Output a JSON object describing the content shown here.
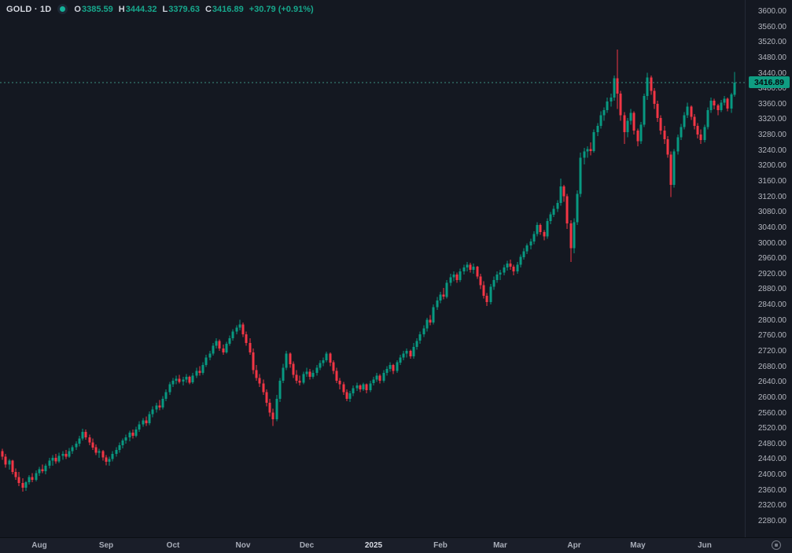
{
  "header": {
    "symbol_text": "GOLD · 1D",
    "marker": "live-dot",
    "o_label": "O",
    "o_value": "3385.59",
    "h_label": "H",
    "h_value": "3444.32",
    "l_label": "L",
    "l_value": "3379.63",
    "c_label": "C",
    "c_value": "3416.89",
    "change_text": "+30.79 (+0.91%)"
  },
  "colors": {
    "background": "#141821",
    "axis_background": "#1a1e29",
    "up": "#089981",
    "down": "#f23645",
    "axis_text": "#b2b5be",
    "price_line": "#3c8f81",
    "price_tag_bg": "#0f9d82",
    "price_tag_text": "#06090f",
    "legend_value": "#17a78c"
  },
  "price_axis": {
    "tick_labels": [
      "3600.00",
      "3560.00",
      "3520.00",
      "3480.00",
      "3440.00",
      "3400.00",
      "3360.00",
      "3320.00",
      "3280.00",
      "3240.00",
      "3200.00",
      "3160.00",
      "3120.00",
      "3080.00",
      "3040.00",
      "3000.00",
      "2960.00",
      "2920.00",
      "2880.00",
      "2840.00",
      "2800.00",
      "2760.00",
      "2720.00",
      "2680.00",
      "2640.00",
      "2600.00",
      "2560.00",
      "2520.00",
      "2480.00",
      "2440.00",
      "2400.00",
      "2360.00",
      "2320.00",
      "2280.00"
    ],
    "last_price_label": "3416.89"
  },
  "time_axis": {
    "ticks": [
      {
        "label": "Aug",
        "index": 11,
        "year": false
      },
      {
        "label": "Sep",
        "index": 31,
        "year": false
      },
      {
        "label": "Oct",
        "index": 51,
        "year": false
      },
      {
        "label": "Nov",
        "index": 72,
        "year": false
      },
      {
        "label": "Dec",
        "index": 91,
        "year": false
      },
      {
        "label": "2025",
        "index": 111,
        "year": true
      },
      {
        "label": "Feb",
        "index": 131,
        "year": false
      },
      {
        "label": "Mar",
        "index": 149,
        "year": false
      },
      {
        "label": "Apr",
        "index": 171,
        "year": false
      },
      {
        "label": "May",
        "index": 190,
        "year": false
      },
      {
        "label": "Jun",
        "index": 210,
        "year": false
      }
    ],
    "settings_icon": "target-icon"
  },
  "chart_data": {
    "type": "candlestick",
    "title": "GOLD · 1D",
    "symbol": "GOLD",
    "interval": "1D",
    "last_price": 3416.89,
    "change": 30.79,
    "change_pct": 0.91,
    "ylim": [
      2280,
      3600
    ],
    "y_step": 40,
    "grid": false,
    "x_range_labels": [
      "Aug",
      "Sep",
      "Oct",
      "Nov",
      "Dec",
      "2025",
      "Feb",
      "Mar",
      "Apr",
      "May",
      "Jun"
    ],
    "candles": [
      [
        2462,
        2468,
        2440,
        2448
      ],
      [
        2448,
        2455,
        2420,
        2428
      ],
      [
        2428,
        2442,
        2415,
        2438
      ],
      [
        2438,
        2440,
        2402,
        2408
      ],
      [
        2408,
        2418,
        2388,
        2395
      ],
      [
        2395,
        2408,
        2372,
        2380
      ],
      [
        2380,
        2392,
        2357,
        2368
      ],
      [
        2368,
        2385,
        2360,
        2382
      ],
      [
        2382,
        2400,
        2376,
        2395
      ],
      [
        2395,
        2405,
        2382,
        2388
      ],
      [
        2388,
        2412,
        2384,
        2405
      ],
      [
        2405,
        2422,
        2398,
        2415
      ],
      [
        2415,
        2428,
        2405,
        2410
      ],
      [
        2410,
        2430,
        2402,
        2425
      ],
      [
        2425,
        2445,
        2418,
        2438
      ],
      [
        2438,
        2452,
        2425,
        2445
      ],
      [
        2445,
        2455,
        2430,
        2436
      ],
      [
        2436,
        2458,
        2432,
        2450
      ],
      [
        2450,
        2462,
        2440,
        2455
      ],
      [
        2455,
        2465,
        2442,
        2448
      ],
      [
        2448,
        2470,
        2445,
        2462
      ],
      [
        2462,
        2478,
        2455,
        2472
      ],
      [
        2472,
        2488,
        2465,
        2482
      ],
      [
        2482,
        2502,
        2475,
        2495
      ],
      [
        2495,
        2520,
        2490,
        2512
      ],
      [
        2512,
        2518,
        2492,
        2498
      ],
      [
        2498,
        2505,
        2478,
        2485
      ],
      [
        2485,
        2495,
        2465,
        2472
      ],
      [
        2472,
        2480,
        2452,
        2458
      ],
      [
        2458,
        2468,
        2445,
        2462
      ],
      [
        2462,
        2465,
        2438,
        2446
      ],
      [
        2446,
        2452,
        2426,
        2435
      ],
      [
        2435,
        2448,
        2425,
        2442
      ],
      [
        2442,
        2462,
        2436,
        2455
      ],
      [
        2455,
        2472,
        2448,
        2465
      ],
      [
        2465,
        2485,
        2458,
        2478
      ],
      [
        2478,
        2495,
        2470,
        2490
      ],
      [
        2490,
        2505,
        2482,
        2498
      ],
      [
        2498,
        2515,
        2488,
        2510
      ],
      [
        2510,
        2518,
        2495,
        2502
      ],
      [
        2502,
        2525,
        2498,
        2518
      ],
      [
        2518,
        2540,
        2512,
        2532
      ],
      [
        2532,
        2548,
        2525,
        2542
      ],
      [
        2542,
        2552,
        2528,
        2535
      ],
      [
        2535,
        2565,
        2530,
        2558
      ],
      [
        2558,
        2578,
        2550,
        2570
      ],
      [
        2570,
        2588,
        2562,
        2580
      ],
      [
        2580,
        2595,
        2568,
        2575
      ],
      [
        2575,
        2605,
        2570,
        2598
      ],
      [
        2598,
        2622,
        2592,
        2615
      ],
      [
        2615,
        2642,
        2608,
        2635
      ],
      [
        2635,
        2652,
        2628,
        2645
      ],
      [
        2645,
        2658,
        2635,
        2650
      ],
      [
        2650,
        2660,
        2638,
        2642
      ],
      [
        2642,
        2655,
        2632,
        2648
      ],
      [
        2648,
        2662,
        2640,
        2655
      ],
      [
        2655,
        2658,
        2635,
        2640
      ],
      [
        2640,
        2665,
        2636,
        2658
      ],
      [
        2658,
        2678,
        2652,
        2670
      ],
      [
        2670,
        2682,
        2658,
        2665
      ],
      [
        2665,
        2692,
        2660,
        2685
      ],
      [
        2685,
        2712,
        2680,
        2705
      ],
      [
        2705,
        2722,
        2698,
        2715
      ],
      [
        2715,
        2742,
        2710,
        2735
      ],
      [
        2735,
        2755,
        2728,
        2748
      ],
      [
        2748,
        2752,
        2722,
        2728
      ],
      [
        2728,
        2738,
        2712,
        2718
      ],
      [
        2718,
        2745,
        2715,
        2740
      ],
      [
        2740,
        2762,
        2735,
        2755
      ],
      [
        2755,
        2778,
        2748,
        2772
      ],
      [
        2772,
        2788,
        2765,
        2782
      ],
      [
        2782,
        2802,
        2775,
        2790
      ],
      [
        2790,
        2795,
        2758,
        2765
      ],
      [
        2765,
        2772,
        2735,
        2742
      ],
      [
        2742,
        2755,
        2712,
        2718
      ],
      [
        2718,
        2728,
        2662,
        2672
      ],
      [
        2672,
        2685,
        2645,
        2652
      ],
      [
        2652,
        2662,
        2628,
        2638
      ],
      [
        2638,
        2648,
        2608,
        2615
      ],
      [
        2615,
        2622,
        2578,
        2588
      ],
      [
        2588,
        2598,
        2552,
        2562
      ],
      [
        2562,
        2572,
        2528,
        2545
      ],
      [
        2545,
        2608,
        2540,
        2598
      ],
      [
        2598,
        2652,
        2590,
        2645
      ],
      [
        2645,
        2688,
        2638,
        2678
      ],
      [
        2678,
        2722,
        2672,
        2715
      ],
      [
        2715,
        2718,
        2678,
        2688
      ],
      [
        2688,
        2695,
        2652,
        2660
      ],
      [
        2660,
        2672,
        2638,
        2645
      ],
      [
        2645,
        2658,
        2632,
        2640
      ],
      [
        2640,
        2668,
        2635,
        2662
      ],
      [
        2662,
        2678,
        2655,
        2668
      ],
      [
        2668,
        2675,
        2648,
        2655
      ],
      [
        2655,
        2672,
        2650,
        2665
      ],
      [
        2665,
        2685,
        2658,
        2678
      ],
      [
        2678,
        2698,
        2672,
        2690
      ],
      [
        2690,
        2705,
        2682,
        2698
      ],
      [
        2698,
        2720,
        2692,
        2715
      ],
      [
        2715,
        2718,
        2682,
        2692
      ],
      [
        2692,
        2698,
        2662,
        2670
      ],
      [
        2670,
        2678,
        2638,
        2645
      ],
      [
        2645,
        2652,
        2622,
        2635
      ],
      [
        2635,
        2642,
        2608,
        2615
      ],
      [
        2615,
        2622,
        2592,
        2598
      ],
      [
        2598,
        2618,
        2590,
        2612
      ],
      [
        2612,
        2632,
        2605,
        2625
      ],
      [
        2625,
        2640,
        2618,
        2632
      ],
      [
        2632,
        2635,
        2615,
        2622
      ],
      [
        2622,
        2640,
        2618,
        2635
      ],
      [
        2635,
        2638,
        2612,
        2620
      ],
      [
        2620,
        2645,
        2615,
        2638
      ],
      [
        2638,
        2655,
        2632,
        2648
      ],
      [
        2648,
        2665,
        2642,
        2658
      ],
      [
        2658,
        2662,
        2638,
        2645
      ],
      [
        2645,
        2672,
        2640,
        2665
      ],
      [
        2665,
        2682,
        2658,
        2675
      ],
      [
        2675,
        2692,
        2668,
        2685
      ],
      [
        2685,
        2688,
        2662,
        2670
      ],
      [
        2670,
        2698,
        2665,
        2692
      ],
      [
        2692,
        2712,
        2685,
        2705
      ],
      [
        2705,
        2722,
        2698,
        2715
      ],
      [
        2715,
        2728,
        2705,
        2722
      ],
      [
        2722,
        2725,
        2702,
        2708
      ],
      [
        2708,
        2742,
        2702,
        2732
      ],
      [
        2732,
        2755,
        2725,
        2748
      ],
      [
        2748,
        2772,
        2740,
        2765
      ],
      [
        2765,
        2788,
        2758,
        2780
      ],
      [
        2780,
        2808,
        2772,
        2802
      ],
      [
        2802,
        2815,
        2788,
        2795
      ],
      [
        2795,
        2842,
        2790,
        2835
      ],
      [
        2835,
        2862,
        2828,
        2852
      ],
      [
        2852,
        2875,
        2845,
        2868
      ],
      [
        2868,
        2885,
        2855,
        2862
      ],
      [
        2862,
        2905,
        2858,
        2898
      ],
      [
        2898,
        2922,
        2890,
        2912
      ],
      [
        2912,
        2928,
        2902,
        2920
      ],
      [
        2920,
        2925,
        2898,
        2905
      ],
      [
        2905,
        2935,
        2900,
        2928
      ],
      [
        2928,
        2945,
        2920,
        2938
      ],
      [
        2938,
        2952,
        2928,
        2945
      ],
      [
        2945,
        2950,
        2925,
        2932
      ],
      [
        2932,
        2948,
        2922,
        2940
      ],
      [
        2940,
        2942,
        2908,
        2915
      ],
      [
        2915,
        2922,
        2882,
        2892
      ],
      [
        2892,
        2902,
        2858,
        2865
      ],
      [
        2865,
        2872,
        2838,
        2848
      ],
      [
        2848,
        2895,
        2842,
        2888
      ],
      [
        2888,
        2915,
        2880,
        2905
      ],
      [
        2905,
        2928,
        2898,
        2920
      ],
      [
        2920,
        2932,
        2905,
        2925
      ],
      [
        2925,
        2945,
        2918,
        2938
      ],
      [
        2938,
        2955,
        2930,
        2948
      ],
      [
        2948,
        2958,
        2932,
        2940
      ],
      [
        2940,
        2945,
        2918,
        2928
      ],
      [
        2928,
        2952,
        2922,
        2945
      ],
      [
        2945,
        2972,
        2938,
        2965
      ],
      [
        2965,
        2988,
        2958,
        2980
      ],
      [
        2980,
        3000,
        2972,
        2995
      ],
      [
        2995,
        3012,
        2985,
        3005
      ],
      [
        3005,
        3032,
        2998,
        3025
      ],
      [
        3025,
        3055,
        3018,
        3048
      ],
      [
        3048,
        3052,
        3022,
        3030
      ],
      [
        3030,
        3035,
        3008,
        3018
      ],
      [
        3018,
        3065,
        3012,
        3058
      ],
      [
        3058,
        3082,
        3050,
        3075
      ],
      [
        3075,
        3098,
        3068,
        3090
      ],
      [
        3090,
        3112,
        3082,
        3105
      ],
      [
        3105,
        3168,
        3098,
        3148
      ],
      [
        3148,
        3152,
        3108,
        3122
      ],
      [
        3122,
        3128,
        3038,
        3052
      ],
      [
        3052,
        3060,
        2952,
        2988
      ],
      [
        2988,
        3065,
        2975,
        3055
      ],
      [
        3055,
        3138,
        3048,
        3128
      ],
      [
        3128,
        3235,
        3120,
        3222
      ],
      [
        3222,
        3248,
        3205,
        3238
      ],
      [
        3238,
        3252,
        3222,
        3245
      ],
      [
        3245,
        3262,
        3228,
        3240
      ],
      [
        3240,
        3295,
        3235,
        3288
      ],
      [
        3288,
        3312,
        3278,
        3305
      ],
      [
        3305,
        3342,
        3298,
        3332
      ],
      [
        3332,
        3352,
        3318,
        3345
      ],
      [
        3345,
        3378,
        3338,
        3368
      ],
      [
        3368,
        3388,
        3355,
        3378
      ],
      [
        3378,
        3435,
        3370,
        3428
      ],
      [
        3428,
        3502,
        3348,
        3388
      ],
      [
        3388,
        3395,
        3318,
        3332
      ],
      [
        3332,
        3340,
        3258,
        3288
      ],
      [
        3288,
        3325,
        3275,
        3318
      ],
      [
        3318,
        3348,
        3308,
        3338
      ],
      [
        3338,
        3342,
        3282,
        3292
      ],
      [
        3292,
        3298,
        3252,
        3265
      ],
      [
        3265,
        3315,
        3258,
        3308
      ],
      [
        3308,
        3388,
        3302,
        3382
      ],
      [
        3382,
        3442,
        3372,
        3430
      ],
      [
        3430,
        3435,
        3385,
        3395
      ],
      [
        3395,
        3402,
        3348,
        3362
      ],
      [
        3362,
        3370,
        3315,
        3325
      ],
      [
        3325,
        3332,
        3282,
        3292
      ],
      [
        3292,
        3305,
        3258,
        3270
      ],
      [
        3270,
        3278,
        3222,
        3230
      ],
      [
        3230,
        3238,
        3120,
        3152
      ],
      [
        3152,
        3245,
        3145,
        3238
      ],
      [
        3238,
        3282,
        3230,
        3275
      ],
      [
        3275,
        3310,
        3268,
        3302
      ],
      [
        3302,
        3340,
        3295,
        3332
      ],
      [
        3332,
        3365,
        3325,
        3355
      ],
      [
        3355,
        3358,
        3320,
        3328
      ],
      [
        3328,
        3335,
        3295,
        3305
      ],
      [
        3305,
        3312,
        3272,
        3282
      ],
      [
        3282,
        3295,
        3258,
        3268
      ],
      [
        3268,
        3308,
        3262,
        3302
      ],
      [
        3302,
        3352,
        3295,
        3345
      ],
      [
        3345,
        3378,
        3338,
        3370
      ],
      [
        3370,
        3375,
        3348,
        3358
      ],
      [
        3358,
        3362,
        3332,
        3345
      ],
      [
        3345,
        3372,
        3340,
        3365
      ],
      [
        3365,
        3382,
        3358,
        3375
      ],
      [
        3375,
        3378,
        3342,
        3350
      ],
      [
        3350,
        3390,
        3338,
        3386
      ],
      [
        3385.59,
        3444.32,
        3379.63,
        3416.89
      ]
    ]
  }
}
